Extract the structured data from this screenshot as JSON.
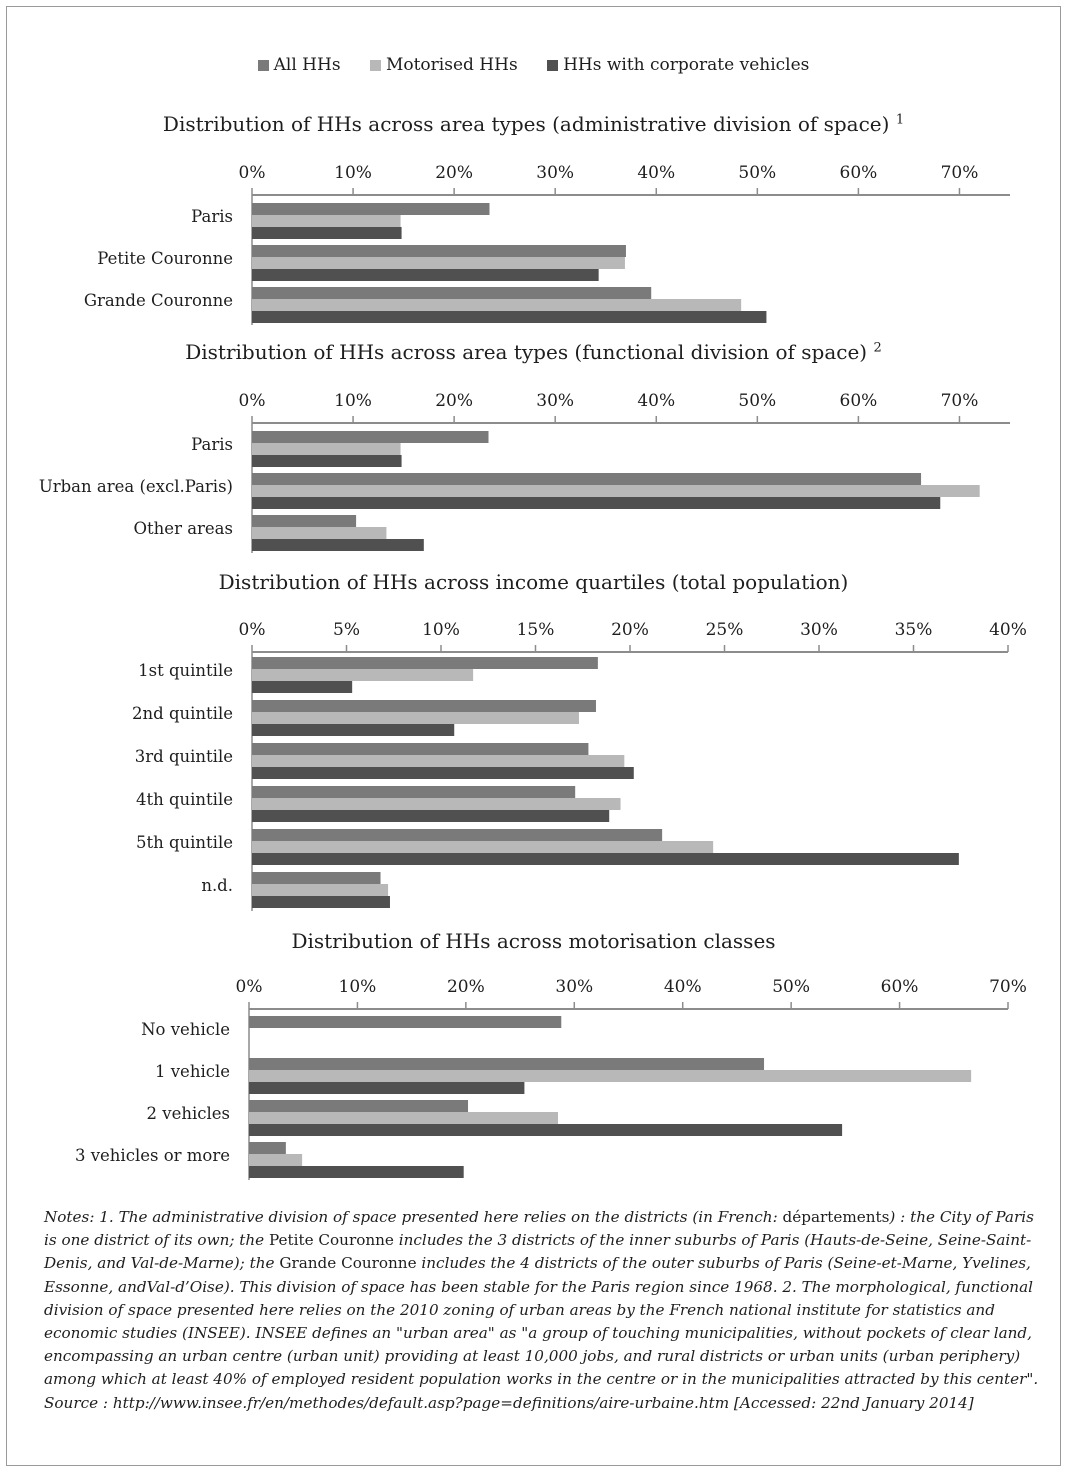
{
  "colors": {
    "All HHs": "#7a7a7a",
    "Motorised HHs": "#b8b8b8",
    "HHs with corporate vehicles": "#505050"
  },
  "legend": [
    "All HHs",
    "Motorised HHs",
    "HHs with corporate vehicles"
  ],
  "chart_data": [
    {
      "type": "bar",
      "title": "Distribution of HHs across area types (administrative division of space)",
      "title_note": "1",
      "orientation": "horizontal",
      "xlim": [
        0,
        75
      ],
      "ticks": [
        "0%",
        "10%",
        "20%",
        "30%",
        "40%",
        "50%",
        "60%",
        "70%"
      ],
      "tick_values": [
        0,
        10,
        20,
        30,
        40,
        50,
        60,
        70
      ],
      "categories": [
        "Paris",
        "Petite Couronne",
        "Grande Couronne"
      ],
      "series": [
        {
          "name": "All HHs",
          "values": [
            23.5,
            37,
            39.5
          ]
        },
        {
          "name": "Motorised HHs",
          "values": [
            14.7,
            36.9,
            48.4
          ]
        },
        {
          "name": "HHs with corporate vehicles",
          "values": [
            14.8,
            34.3,
            50.9
          ]
        }
      ]
    },
    {
      "type": "bar",
      "title": "Distribution of HHs across area types (functional division of space)",
      "title_note": "2",
      "orientation": "horizontal",
      "xlim": [
        0,
        75
      ],
      "ticks": [
        "0%",
        "10%",
        "20%",
        "30%",
        "40%",
        "50%",
        "60%",
        "70%"
      ],
      "tick_values": [
        0,
        10,
        20,
        30,
        40,
        50,
        60,
        70
      ],
      "categories": [
        "Paris",
        "Urban area (excl.Paris)",
        "Other areas"
      ],
      "series": [
        {
          "name": "All HHs",
          "values": [
            23.4,
            66.2,
            10.3
          ]
        },
        {
          "name": "Motorised HHs",
          "values": [
            14.7,
            72,
            13.3
          ]
        },
        {
          "name": "HHs with corporate vehicles",
          "values": [
            14.8,
            68.1,
            17
          ]
        }
      ]
    },
    {
      "type": "bar",
      "title": "Distribution of HHs across income quartiles (total population)",
      "title_note": "",
      "orientation": "horizontal",
      "xlim": [
        0,
        40
      ],
      "ticks": [
        "0%",
        "5%",
        "10%",
        "15%",
        "20%",
        "25%",
        "30%",
        "35%",
        "40%"
      ],
      "tick_values": [
        0,
        5,
        10,
        15,
        20,
        25,
        30,
        35,
        40
      ],
      "categories": [
        "1st quintile",
        "2nd quintile",
        "3rd quintile",
        "4th quintile",
        "5th quintile",
        "n.d."
      ],
      "series": [
        {
          "name": "All HHs",
          "values": [
            18.3,
            18.2,
            17.8,
            17.1,
            21.7,
            6.8
          ]
        },
        {
          "name": "Motorised HHs",
          "values": [
            11.7,
            17.3,
            19.7,
            19.5,
            24.4,
            7.2
          ]
        },
        {
          "name": "HHs with corporate vehicles",
          "values": [
            5.3,
            10.7,
            20.2,
            18.9,
            37.4,
            7.3
          ]
        }
      ]
    },
    {
      "type": "bar",
      "title": "Distribution of HHs across motorisation classes",
      "title_note": "",
      "orientation": "horizontal",
      "xlim": [
        0,
        70
      ],
      "ticks": [
        "0%",
        "10%",
        "20%",
        "30%",
        "40%",
        "50%",
        "60%",
        "70%"
      ],
      "tick_values": [
        0,
        10,
        20,
        30,
        40,
        50,
        60,
        70
      ],
      "categories": [
        "No vehicle",
        "1 vehicle",
        "2 vehicles",
        "3 vehicles or more"
      ],
      "series": [
        {
          "name": "All HHs",
          "values": [
            28.8,
            47.5,
            20.2,
            3.4
          ]
        },
        {
          "name": "Motorised HHs",
          "values": [
            0,
            66.6,
            28.5,
            4.9
          ]
        },
        {
          "name": "HHs with corporate vehicles",
          "values": [
            0,
            25.4,
            54.7,
            19.8
          ]
        }
      ]
    }
  ],
  "notes": {
    "p1": "Notes: 1. The administrative division of space presented here relies on the districts (in French: ",
    "r1": "départements",
    "p2": ") : the City of Paris is one district of its own; the ",
    "r2": "Petite Couronne",
    "p3": " includes  the 3 districts of the inner suburbs of Paris (Hauts-de-Seine, Seine-Saint-Denis, and Val-de-Marne); the ",
    "r3": "Grande Couronne",
    "p4": " includes the 4 districts of the outer suburbs of Paris (Seine-et-Marne, Yvelines, Essonne, andVal-d’Oise). This division of space has been stable for the Paris region since 1968. 2. The morphological, functional division of space presented here relies on the 2010 zoning of urban areas by the French national institute for statistics and economic studies (INSEE). INSEE defines an \"urban area\" as \"a group of touching municipalities, without pockets of clear land, encompassing an urban centre (urban unit) providing at least 10,000 jobs, and rural districts or urban units (urban periphery) among which at least 40% of employed resident population works in the centre or in the municipalities attracted by this center\". Source : http://www.insee.fr/en/methodes/default.asp?page=definitions/aire-urbaine.htm [Accessed: 22nd January 2014]"
  }
}
